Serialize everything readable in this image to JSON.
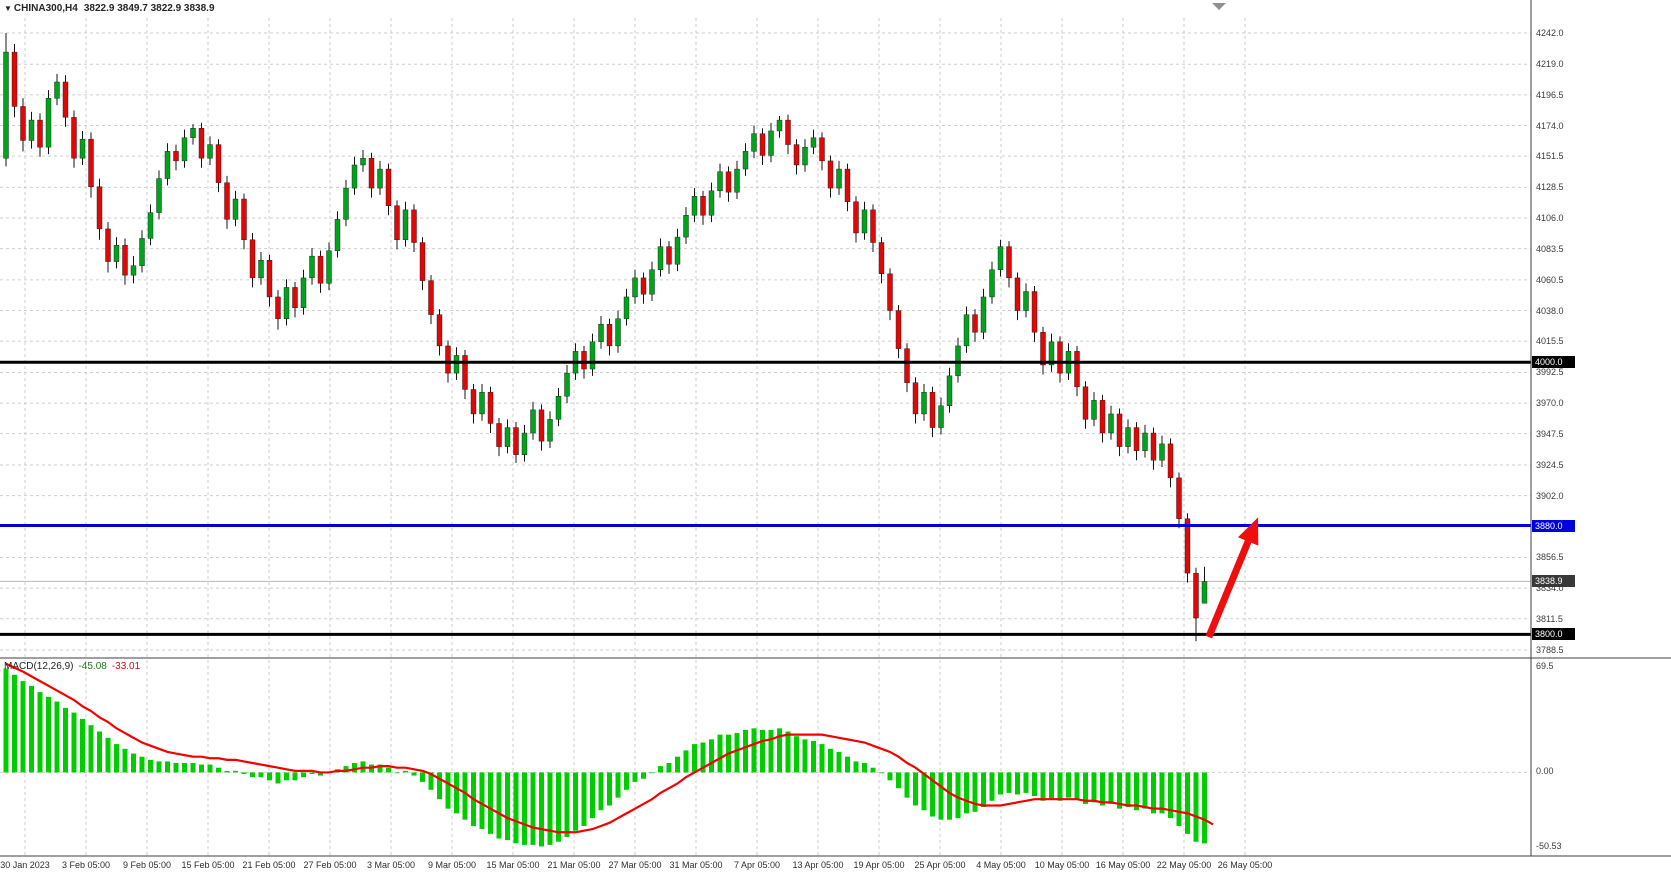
{
  "header": {
    "symbol_period": "CHINA300,H4",
    "ohlc_text": "3822.9 3849.7 3822.9 3838.9"
  },
  "macd_panel": {
    "title": "MACD(12,26,9)",
    "value_main": "-45.08",
    "value_signal": "-33.01",
    "scale": {
      "max": "69.5",
      "zero": "0.00",
      "min": "-50.53"
    }
  },
  "colors": {
    "bull": "#00a31c",
    "bear": "#e00707",
    "wick": "#151515",
    "grid": "#cfcfcf",
    "hist": "#00cc00",
    "signal": "#f40000",
    "separator": "#3f3f3f",
    "axis_text": "#3c3c3c",
    "shift_marker": "#909090"
  },
  "price_tags": [
    {
      "label": "4000.0",
      "value": 4000.0,
      "bg": "#000000"
    },
    {
      "label": "3880.0",
      "value": 3880.0,
      "bg": "#0000dd"
    },
    {
      "label": "3838.9",
      "value": 3838.9,
      "bg": "#383838"
    },
    {
      "label": "3800.0",
      "value": 3800.0,
      "bg": "#000000"
    }
  ],
  "chart_data": {
    "type": "candlestick",
    "symbol": "CHINA300",
    "timeframe": "H4",
    "ylim": [
      3788.5,
      4242.0
    ],
    "grid": "dotted",
    "y_ticks": [
      4242.0,
      4219.0,
      4196.5,
      4174.0,
      4151.5,
      4128.5,
      4106.0,
      4083.5,
      4060.5,
      4038.0,
      4015.5,
      3992.5,
      3970.0,
      3947.5,
      3924.5,
      3902.0,
      3879.5,
      3856.5,
      3834.0,
      3811.5,
      3788.5
    ],
    "y_tick_labels": [
      "4242.0",
      "4219.0",
      "4196.5",
      "4174.0",
      "4151.5",
      "4128.5",
      "4106.0",
      "4083.5",
      "4060.5",
      "4038.0",
      "4015.5",
      "3992.5",
      "3970.0",
      "3947.5",
      "3924.5",
      "3902.0",
      "3879.5",
      "3856.5",
      "3834.0",
      "3811.5",
      "3788.5"
    ],
    "x_tick_labels": [
      "30 Jan 2023",
      "3 Feb 05:00",
      "9 Feb 05:00",
      "15 Feb 05:00",
      "21 Feb 05:00",
      "27 Feb 05:00",
      "3 Mar 05:00",
      "9 Mar 05:00",
      "15 Mar 05:00",
      "21 Mar 05:00",
      "27 Mar 05:00",
      "31 Mar 05:00",
      "7 Apr 05:00",
      "13 Apr 05:00",
      "19 Apr 05:00",
      "25 Apr 05:00",
      "4 May 05:00",
      "10 May 05:00",
      "16 May 05:00",
      "22 May 05:00",
      "26 May 05:00"
    ],
    "candles_ohlc": [
      [
        4150,
        4242,
        4144,
        4228
      ],
      [
        4228,
        4234,
        4180,
        4188
      ],
      [
        4188,
        4194,
        4155,
        4163
      ],
      [
        4163,
        4184,
        4157,
        4178
      ],
      [
        4178,
        4183,
        4151,
        4158
      ],
      [
        4158,
        4200,
        4153,
        4194
      ],
      [
        4194,
        4212,
        4189,
        4206
      ],
      [
        4206,
        4211,
        4173,
        4180
      ],
      [
        4180,
        4185,
        4143,
        4150
      ],
      [
        4150,
        4170,
        4145,
        4164
      ],
      [
        4164,
        4169,
        4121,
        4129
      ],
      [
        4129,
        4135,
        4090,
        4098
      ],
      [
        4098,
        4103,
        4066,
        4074
      ],
      [
        4074,
        4092,
        4069,
        4086
      ],
      [
        4086,
        4091,
        4057,
        4064
      ],
      [
        4064,
        4078,
        4058,
        4071
      ],
      [
        4071,
        4097,
        4066,
        4091
      ],
      [
        4091,
        4116,
        4086,
        4110
      ],
      [
        4110,
        4141,
        4105,
        4135
      ],
      [
        4135,
        4161,
        4130,
        4155
      ],
      [
        4155,
        4160,
        4141,
        4148
      ],
      [
        4148,
        4171,
        4143,
        4165
      ],
      [
        4165,
        4175,
        4160,
        4172
      ],
      [
        4172,
        4176,
        4143,
        4150
      ],
      [
        4150,
        4166,
        4145,
        4160
      ],
      [
        4160,
        4164,
        4125,
        4132
      ],
      [
        4132,
        4137,
        4098,
        4105
      ],
      [
        4105,
        4126,
        4100,
        4120
      ],
      [
        4120,
        4124,
        4083,
        4090
      ],
      [
        4090,
        4095,
        4055,
        4062
      ],
      [
        4062,
        4081,
        4057,
        4075
      ],
      [
        4075,
        4079,
        4041,
        4048
      ],
      [
        4048,
        4053,
        4024,
        4032
      ],
      [
        4032,
        4061,
        4027,
        4055
      ],
      [
        4055,
        4059,
        4033,
        4040
      ],
      [
        4040,
        4068,
        4035,
        4062
      ],
      [
        4062,
        4084,
        4057,
        4078
      ],
      [
        4078,
        4082,
        4051,
        4058
      ],
      [
        4058,
        4088,
        4053,
        4082
      ],
      [
        4082,
        4111,
        4077,
        4105
      ],
      [
        4105,
        4134,
        4100,
        4128
      ],
      [
        4128,
        4151,
        4123,
        4145
      ],
      [
        4145,
        4156,
        4140,
        4150
      ],
      [
        4150,
        4154,
        4121,
        4128
      ],
      [
        4128,
        4148,
        4123,
        4142
      ],
      [
        4142,
        4146,
        4108,
        4115
      ],
      [
        4115,
        4119,
        4083,
        4090
      ],
      [
        4090,
        4118,
        4085,
        4112
      ],
      [
        4112,
        4116,
        4081,
        4088
      ],
      [
        4088,
        4092,
        4053,
        4060
      ],
      [
        4060,
        4064,
        4028,
        4035
      ],
      [
        4035,
        4039,
        4005,
        4012
      ],
      [
        4012,
        4016,
        3985,
        3992
      ],
      [
        3992,
        4011,
        3987,
        4005
      ],
      [
        4005,
        4009,
        3973,
        3980
      ],
      [
        3980,
        3984,
        3955,
        3962
      ],
      [
        3962,
        3984,
        3957,
        3978
      ],
      [
        3978,
        3982,
        3948,
        3955
      ],
      [
        3955,
        3959,
        3931,
        3938
      ],
      [
        3938,
        3958,
        3933,
        3952
      ],
      [
        3952,
        3956,
        3926,
        3932
      ],
      [
        3932,
        3954,
        3927,
        3948
      ],
      [
        3948,
        3971,
        3943,
        3965
      ],
      [
        3965,
        3969,
        3935,
        3942
      ],
      [
        3942,
        3964,
        3937,
        3958
      ],
      [
        3958,
        3981,
        3953,
        3975
      ],
      [
        3975,
        3998,
        3970,
        3992
      ],
      [
        3992,
        4014,
        3987,
        4008
      ],
      [
        4008,
        4012,
        3988,
        3995
      ],
      [
        3995,
        4021,
        3990,
        4015
      ],
      [
        4015,
        4034,
        4010,
        4028
      ],
      [
        4028,
        4032,
        4005,
        4012
      ],
      [
        4012,
        4038,
        4007,
        4032
      ],
      [
        4032,
        4054,
        4027,
        4048
      ],
      [
        4048,
        4068,
        4043,
        4062
      ],
      [
        4062,
        4066,
        4043,
        4050
      ],
      [
        4050,
        4074,
        4045,
        4068
      ],
      [
        4068,
        4091,
        4063,
        4085
      ],
      [
        4085,
        4089,
        4065,
        4072
      ],
      [
        4072,
        4098,
        4067,
        4092
      ],
      [
        4092,
        4114,
        4087,
        4108
      ],
      [
        4108,
        4128,
        4103,
        4122
      ],
      [
        4122,
        4126,
        4101,
        4108
      ],
      [
        4108,
        4132,
        4103,
        4126
      ],
      [
        4126,
        4146,
        4121,
        4140
      ],
      [
        4140,
        4144,
        4118,
        4125
      ],
      [
        4125,
        4148,
        4120,
        4142
      ],
      [
        4142,
        4161,
        4137,
        4155
      ],
      [
        4155,
        4174,
        4150,
        4168
      ],
      [
        4168,
        4172,
        4145,
        4152
      ],
      [
        4152,
        4176,
        4147,
        4170
      ],
      [
        4170,
        4181,
        4165,
        4178
      ],
      [
        4178,
        4182,
        4153,
        4160
      ],
      [
        4160,
        4164,
        4138,
        4145
      ],
      [
        4145,
        4164,
        4140,
        4158
      ],
      [
        4158,
        4171,
        4153,
        4165
      ],
      [
        4165,
        4169,
        4141,
        4148
      ],
      [
        4148,
        4152,
        4121,
        4128
      ],
      [
        4128,
        4148,
        4123,
        4142
      ],
      [
        4142,
        4146,
        4111,
        4118
      ],
      [
        4118,
        4122,
        4088,
        4095
      ],
      [
        4095,
        4118,
        4090,
        4112
      ],
      [
        4112,
        4116,
        4081,
        4088
      ],
      [
        4088,
        4092,
        4058,
        4065
      ],
      [
        4065,
        4069,
        4031,
        4038
      ],
      [
        4038,
        4042,
        4003,
        4010
      ],
      [
        4010,
        4014,
        3978,
        3985
      ],
      [
        3985,
        3989,
        3955,
        3962
      ],
      [
        3962,
        3984,
        3957,
        3978
      ],
      [
        3978,
        3982,
        3945,
        3952
      ],
      [
        3952,
        3974,
        3947,
        3968
      ],
      [
        3968,
        3996,
        3963,
        3990
      ],
      [
        3990,
        4018,
        3985,
        4012
      ],
      [
        4012,
        4041,
        4007,
        4035
      ],
      [
        4035,
        4039,
        4015,
        4022
      ],
      [
        4022,
        4054,
        4017,
        4048
      ],
      [
        4048,
        4074,
        4043,
        4068
      ],
      [
        4068,
        4090,
        4063,
        4085
      ],
      [
        4085,
        4089,
        4055,
        4062
      ],
      [
        4062,
        4066,
        4031,
        4038
      ],
      [
        4038,
        4058,
        4033,
        4052
      ],
      [
        4052,
        4056,
        4015,
        4022
      ],
      [
        4022,
        4026,
        3991,
        3998
      ],
      [
        3998,
        4021,
        3993,
        4015
      ],
      [
        4015,
        4019,
        3985,
        3992
      ],
      [
        3992,
        4014,
        3987,
        4008
      ],
      [
        4008,
        4012,
        3975,
        3982
      ],
      [
        3982,
        3986,
        3951,
        3958
      ],
      [
        3958,
        3978,
        3953,
        3972
      ],
      [
        3972,
        3976,
        3941,
        3948
      ],
      [
        3948,
        3968,
        3943,
        3962
      ],
      [
        3962,
        3966,
        3931,
        3938
      ],
      [
        3938,
        3958,
        3933,
        3952
      ],
      [
        3952,
        3956,
        3928,
        3935
      ],
      [
        3935,
        3954,
        3930,
        3948
      ],
      [
        3948,
        3952,
        3921,
        3928
      ],
      [
        3928,
        3946,
        3923,
        3940
      ],
      [
        3940,
        3944,
        3908,
        3915
      ],
      [
        3915,
        3919,
        3878,
        3885
      ],
      [
        3885,
        3889,
        3838,
        3845
      ],
      [
        3845,
        3849,
        3795,
        3812
      ],
      [
        3822.9,
        3849.7,
        3822.9,
        3838.9
      ]
    ],
    "overlays": {
      "hlines": [
        {
          "value": 4000.0,
          "color": "#000000",
          "width": 3
        },
        {
          "value": 3880.0,
          "color": "#0000dd",
          "width": 3
        },
        {
          "value": 3800.0,
          "color": "#000000",
          "width": 3
        }
      ],
      "bid_line": {
        "value": 3838.9,
        "color": "#b8b8b8"
      },
      "arrow": {
        "from": {
          "index": 141.5,
          "price": 3798
        },
        "to": {
          "index": 147.3,
          "price": 3886
        },
        "color": "#ee0e0e",
        "width": 7
      }
    },
    "macd": {
      "type": "bar+line",
      "params": "12,26,9",
      "ylim": [
        -50.53,
        69.5
      ],
      "current_main": -45.08,
      "current_signal": -33.01,
      "histogram": [
        66,
        62,
        58,
        55,
        51,
        48,
        45,
        41,
        38,
        34,
        30,
        26,
        22,
        18,
        15,
        12,
        10,
        8,
        7,
        7,
        6,
        6,
        6,
        5,
        5,
        3,
        1,
        1,
        -1,
        -3,
        -3,
        -5,
        -7,
        -5,
        -5,
        -3,
        -1,
        -2,
        0,
        2,
        4,
        6,
        7,
        5,
        5,
        3,
        0,
        1,
        -2,
        -6,
        -11,
        -17,
        -23,
        -26,
        -30,
        -34,
        -36,
        -39,
        -42,
        -43,
        -45,
        -46,
        -46,
        -47,
        -46,
        -44,
        -41,
        -37,
        -34,
        -29,
        -24,
        -21,
        -16,
        -11,
        -6,
        -4,
        0,
        4,
        6,
        10,
        14,
        18,
        19,
        21,
        24,
        24,
        25,
        27,
        28,
        27,
        27,
        28,
        26,
        23,
        21,
        20,
        18,
        15,
        13,
        10,
        7,
        6,
        3,
        0,
        -5,
        -10,
        -16,
        -21,
        -24,
        -28,
        -30,
        -30,
        -29,
        -26,
        -25,
        -22,
        -18,
        -14,
        -13,
        -14,
        -13,
        -15,
        -18,
        -17,
        -18,
        -16,
        -17,
        -20,
        -19,
        -21,
        -20,
        -23,
        -22,
        -24,
        -23,
        -26,
        -26,
        -29,
        -34,
        -39,
        -44,
        -45.08
      ],
      "signal": [
        69,
        66.5,
        64,
        61,
        58,
        55,
        52,
        49,
        46,
        42,
        39,
        35,
        32,
        28,
        25,
        22,
        19,
        17,
        15,
        13,
        12,
        11,
        10,
        10,
        9,
        9,
        8,
        8,
        7,
        6,
        5,
        4,
        3,
        2,
        1,
        1,
        1,
        0,
        0,
        1,
        1,
        2,
        3,
        3,
        4,
        4,
        3,
        3,
        2,
        1,
        -1,
        -4,
        -7,
        -10,
        -13,
        -17,
        -20,
        -23,
        -26,
        -29,
        -31,
        -33,
        -35,
        -36,
        -37,
        -38,
        -38,
        -38,
        -37,
        -36,
        -34,
        -32,
        -29,
        -26,
        -23,
        -20,
        -17,
        -13,
        -10,
        -7,
        -3,
        0,
        3,
        6,
        9,
        12,
        14,
        16,
        18,
        20,
        21,
        23,
        24,
        24,
        24,
        24,
        24,
        23,
        22,
        21,
        20,
        19,
        17,
        15,
        13,
        10,
        6,
        3,
        -1,
        -5,
        -9,
        -13,
        -16,
        -18,
        -20,
        -21,
        -21,
        -21,
        -20,
        -19,
        -18,
        -17,
        -17,
        -17,
        -17,
        -17,
        -17,
        -18,
        -18,
        -19,
        -19,
        -20,
        -21,
        -21,
        -22,
        -23,
        -23,
        -24,
        -25,
        -26,
        -28,
        -30,
        -33.01
      ]
    }
  }
}
